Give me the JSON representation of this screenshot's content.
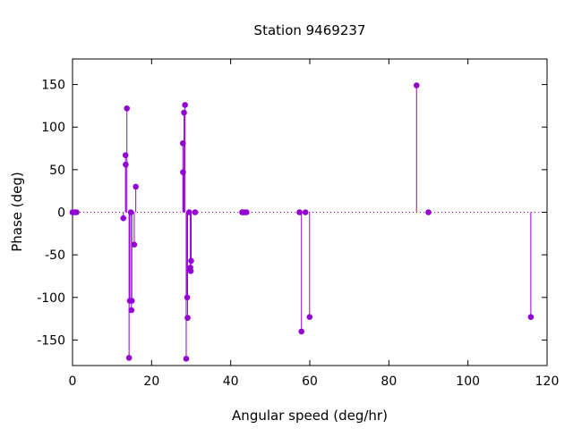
{
  "chart_data": {
    "type": "scatter",
    "style": "impulses-with-points",
    "title": "Station 9469237",
    "xlabel": "Angular speed (deg/hr)",
    "ylabel": "Phase (deg)",
    "xlim": [
      0,
      120
    ],
    "ylim": [
      -180,
      180
    ],
    "xticks": [
      0,
      20,
      40,
      60,
      80,
      100,
      120
    ],
    "yticks": [
      -150,
      -100,
      -50,
      0,
      50,
      100,
      150
    ],
    "grid": false,
    "zero_line": "dotted",
    "color": "#9400d3",
    "series": [
      {
        "x": [
          0.0,
          0.5,
          1.0,
          12.85,
          13.4,
          13.45,
          13.75,
          14.3,
          14.5,
          14.75,
          14.9,
          15.0,
          15.6,
          16.0,
          27.9,
          27.95,
          28.2,
          28.45,
          28.75,
          29.0,
          29.1,
          29.5,
          29.8,
          29.9,
          30.0,
          31.0,
          42.9,
          43.0,
          43.5,
          44.0,
          57.4,
          57.9,
          58.9,
          59.95,
          87.0,
          90.0,
          115.9
        ],
        "y": [
          0,
          0,
          0,
          -7,
          67,
          56,
          122,
          -171,
          -104,
          0,
          -115,
          -104,
          -38,
          30,
          81,
          47,
          117,
          126,
          -172,
          -100,
          -124,
          0,
          -65,
          -69,
          -57,
          0,
          0,
          0,
          0,
          0,
          0,
          -140,
          0,
          -123,
          149,
          0,
          -123
        ]
      }
    ]
  }
}
